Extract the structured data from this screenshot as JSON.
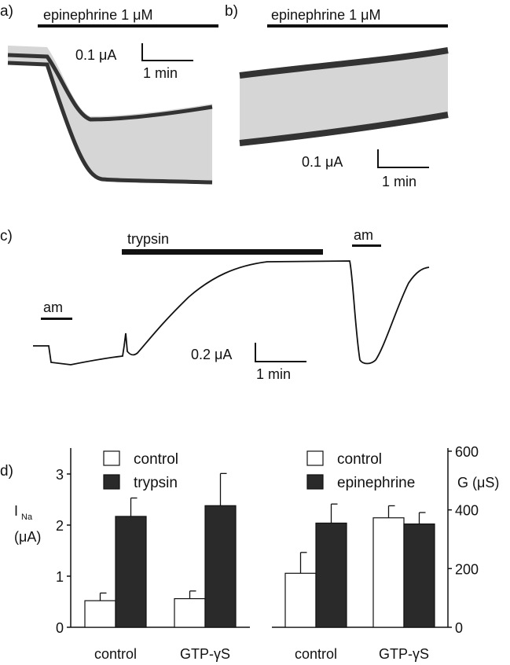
{
  "panels": {
    "a": {
      "label": "a)",
      "drug": "epinephrine 1 μM",
      "scale_y": "0.1 μA",
      "scale_x": "1 min"
    },
    "b": {
      "label": "b)",
      "drug": "epinephrine 1 μM",
      "scale_y": "0.1 μA",
      "scale_x": "1 min"
    },
    "c": {
      "label": "c)",
      "trypsin": "trypsin",
      "am1": "am",
      "am2": "am",
      "scale_y": "0.2 μA",
      "scale_x": "1 min"
    },
    "d": {
      "label": "d)"
    }
  },
  "chart_data": [
    {
      "type": "bar",
      "ylabel_main": "I",
      "ylabel_sub": "Na",
      "ylabel_unit": "(μA)",
      "ylim": [
        0,
        3.5
      ],
      "yticks": [
        "0",
        "1",
        "2",
        "3"
      ],
      "categories": [
        "control",
        "GTP-γS"
      ],
      "series": [
        {
          "name": "control",
          "color": "#ffffff",
          "values": [
            0.52,
            0.56
          ],
          "error": [
            0.15,
            0.15
          ]
        },
        {
          "name": "trypsin",
          "color": "#2a2a2a",
          "values": [
            2.17,
            2.38
          ],
          "error": [
            0.36,
            0.63
          ]
        }
      ]
    },
    {
      "type": "bar",
      "ylabel": "G (μS)",
      "axis_side": "right",
      "ylim": [
        0,
        600
      ],
      "yticks": [
        "0",
        "200",
        "400",
        "600"
      ],
      "categories": [
        "control",
        "GTP-γS"
      ],
      "series": [
        {
          "name": "control",
          "color": "#ffffff",
          "values": [
            184,
            373
          ],
          "error": [
            71,
            41
          ]
        },
        {
          "name": "epinephrine",
          "color": "#2a2a2a",
          "values": [
            355,
            352
          ],
          "error": [
            65,
            39
          ]
        }
      ]
    }
  ]
}
